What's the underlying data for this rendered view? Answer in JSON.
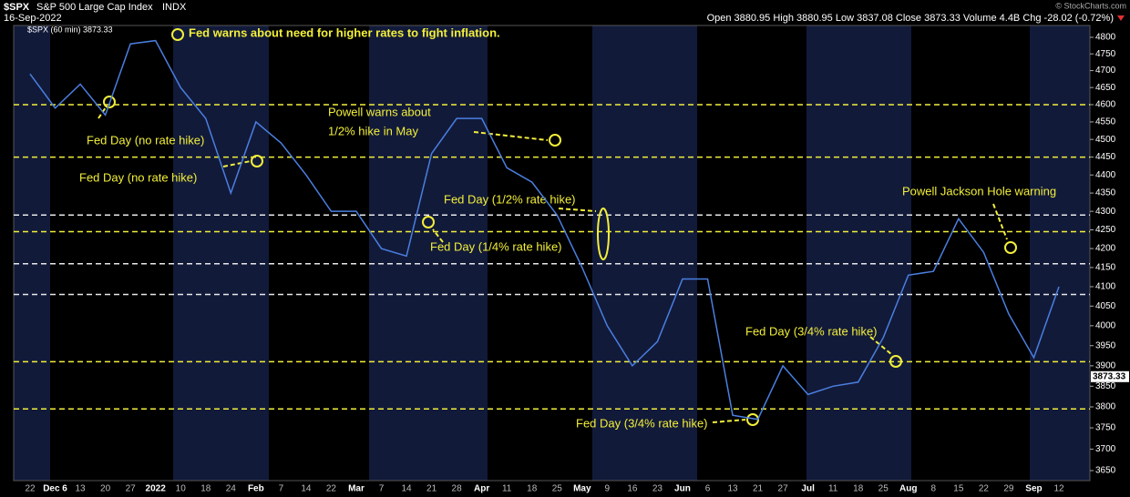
{
  "header": {
    "symbol": "$SPX",
    "name": "S&P 500 Large Cap Index",
    "exchange": "INDX",
    "date": "16-Sep-2022",
    "quote": "Open 3880.95  High 3880.95  Low 3837.08  Close 3873.33  Volume 4.4B  Chg -28.02 (-0.72%)",
    "legend": "$SPX (60 min) 3873.33",
    "credit": "© StockCharts.com"
  },
  "chart_data": {
    "type": "line",
    "log_scale": true,
    "categories": [
      "22",
      "Dec 6",
      "13",
      "20",
      "27",
      "2022",
      "10",
      "18",
      "24",
      "Feb",
      "7",
      "14",
      "22",
      "Mar",
      "7",
      "14",
      "21",
      "28",
      "Apr",
      "11",
      "18",
      "25",
      "May",
      "9",
      "16",
      "23",
      "Jun",
      "6",
      "13",
      "21",
      "27",
      "Jul",
      "11",
      "18",
      "25",
      "Aug",
      "8",
      "15",
      "22",
      "29",
      "Sep",
      "12"
    ],
    "series": [
      {
        "name": "$SPX",
        "color": "#4a7fe0",
        "values": [
          4690,
          4590,
          4660,
          4570,
          4780,
          4790,
          4650,
          4560,
          4350,
          4550,
          4490,
          4400,
          4300,
          4300,
          4200,
          4180,
          4460,
          4560,
          4560,
          4420,
          4380,
          4290,
          4150,
          4000,
          3900,
          3960,
          4120,
          4120,
          3780,
          3770,
          3900,
          3830,
          3850,
          3860,
          3970,
          4130,
          4140,
          4280,
          4190,
          4030,
          3920,
          4100
        ]
      }
    ],
    "last_price": 3873.33,
    "ylim": [
      3627,
      4836
    ],
    "yticks": [
      3650,
      3700,
      3750,
      3800,
      3850,
      3900,
      3950,
      4000,
      4050,
      4100,
      4150,
      4200,
      4250,
      4300,
      4350,
      4400,
      4450,
      4500,
      4550,
      4600,
      4650,
      4700,
      4750,
      4800
    ],
    "reference_lines": [
      {
        "value": 4600,
        "color": "#f2ef3a"
      },
      {
        "value": 4450,
        "color": "#f2ef3a"
      },
      {
        "value": 4290,
        "color": "#e8e8e8"
      },
      {
        "value": 4245,
        "color": "#f2ef3a"
      },
      {
        "value": 4160,
        "color": "#e8e8e8"
      },
      {
        "value": 4080,
        "color": "#e8e8e8"
      },
      {
        "value": 3910,
        "color": "#f2ef3a"
      },
      {
        "value": 3795,
        "color": "#f2ef3a"
      }
    ],
    "annotations": [
      "Fed warns about need for higher rates to fight inflation.",
      "Fed Day (no rate hike)",
      "Fed Day (no rate hike)",
      "Powell warns about",
      "1/2% hike in May",
      "Fed Day (1/2% rate hike)",
      "Fed Day (1/4% rate hike)",
      "Powell Jackson Hole warning",
      "Fed Day (3/4% rate hike)",
      "Fed Day (3/4% rate hike)"
    ]
  }
}
